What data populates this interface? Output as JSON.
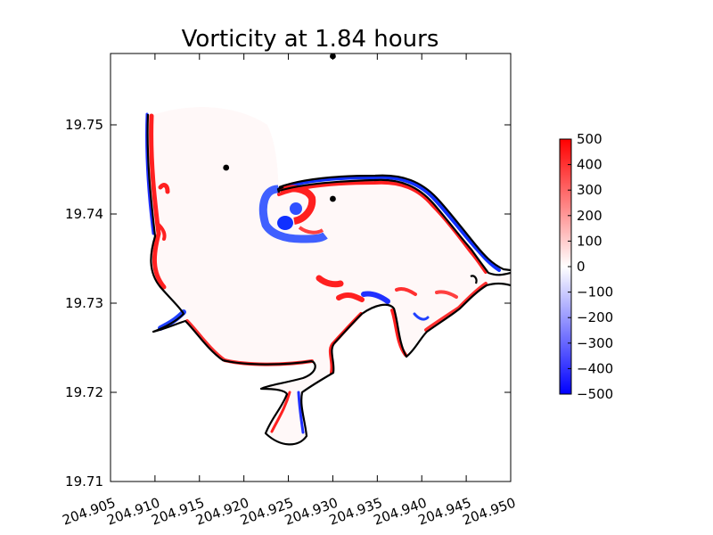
{
  "chart_data": {
    "type": "heatmap",
    "title": "Vorticity at 1.84 hours",
    "xlabel": "",
    "ylabel": "",
    "x_ticks": [
      "204.905",
      "204.910",
      "204.915",
      "204.920",
      "204.925",
      "204.930",
      "204.935",
      "204.940",
      "204.945",
      "204.950"
    ],
    "y_ticks": [
      "19.71",
      "19.72",
      "19.73",
      "19.74",
      "19.75"
    ],
    "xlim": [
      204.905,
      204.95
    ],
    "ylim": [
      19.71,
      19.758
    ],
    "colorbar": {
      "ticks": [
        "500",
        "400",
        "300",
        "200",
        "100",
        "0",
        "−100",
        "−200",
        "−300",
        "−400",
        "−500"
      ],
      "range": [
        -500,
        500
      ],
      "colormap": [
        "#0000ff",
        "#ffffff",
        "#ff0000"
      ]
    },
    "grid": false,
    "markers": [
      {
        "x": 204.918,
        "y": 19.7452
      },
      {
        "x": 204.93,
        "y": 19.7417
      },
      {
        "x": 204.93,
        "y": 19.7577
      }
    ],
    "colors": {
      "positive": "#ff0000",
      "negative": "#0000ff",
      "zero": "#ffffff",
      "coastline": "#000000"
    }
  }
}
